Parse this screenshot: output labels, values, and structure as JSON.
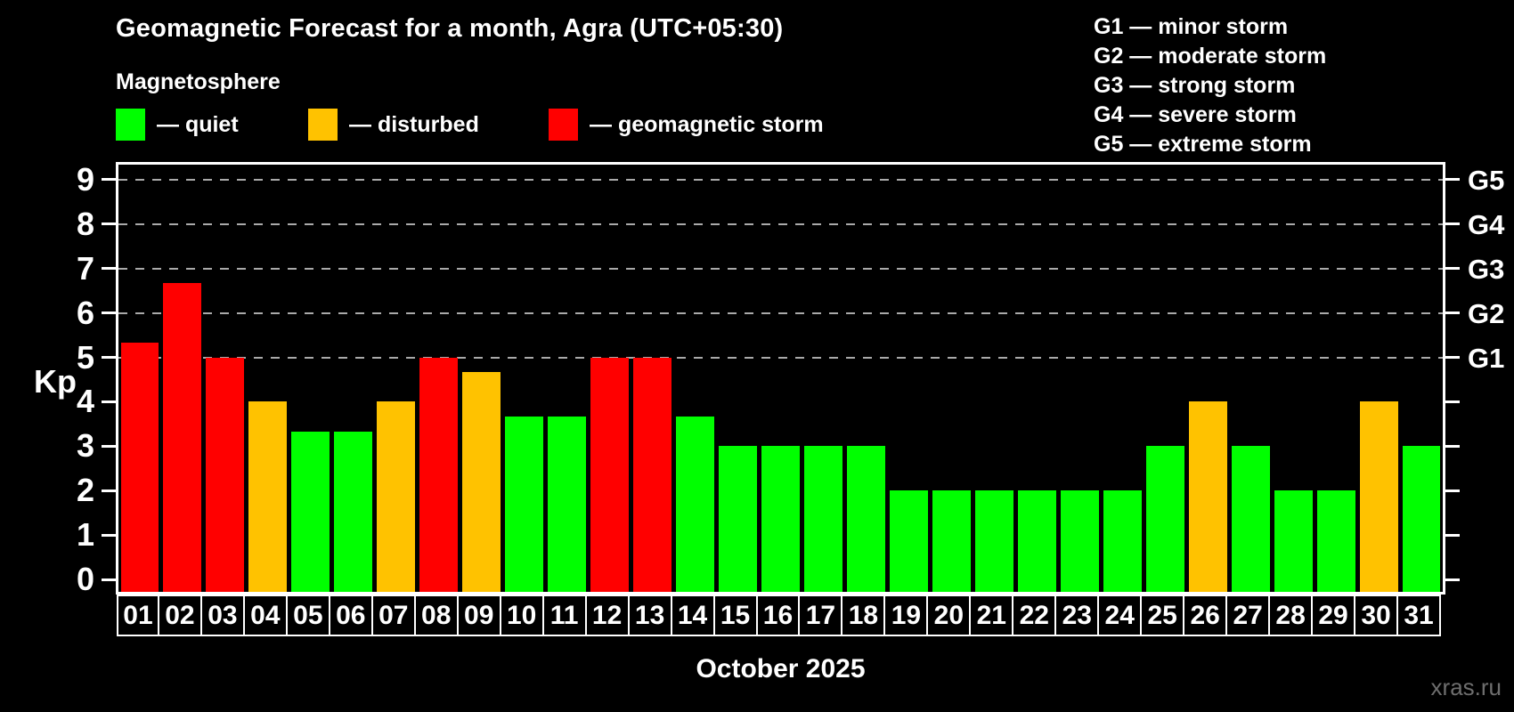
{
  "title": "Geomagnetic Forecast for a month, Agra (UTC+05:30)",
  "subtitle": "Magnetosphere",
  "legend": {
    "items": [
      {
        "label": "— quiet",
        "status": "quiet"
      },
      {
        "label": "— disturbed",
        "status": "disturbed"
      },
      {
        "label": "— geomagnetic storm",
        "status": "storm"
      }
    ]
  },
  "g_legend": {
    "lines": [
      "G1 — minor storm",
      "G2 — moderate storm",
      "G3 — strong storm",
      "G4 — severe storm",
      "G5 — extreme storm"
    ]
  },
  "colors": {
    "quiet": "#00ff00",
    "disturbed": "#ffc200",
    "storm": "#ff0000",
    "background": "#000000",
    "text": "#ffffff",
    "grid": "#aaaaaa",
    "watermark": "#6e6e6e"
  },
  "chart_data": {
    "type": "bar",
    "title": "Geomagnetic Forecast for a month, Agra (UTC+05:30)",
    "xlabel": "October 2025",
    "ylabel": "Kp",
    "ylim": [
      0,
      9
    ],
    "categories": [
      "01",
      "02",
      "03",
      "04",
      "05",
      "06",
      "07",
      "08",
      "09",
      "10",
      "11",
      "12",
      "13",
      "14",
      "15",
      "16",
      "17",
      "18",
      "19",
      "20",
      "21",
      "22",
      "23",
      "24",
      "25",
      "26",
      "27",
      "28",
      "29",
      "30",
      "31"
    ],
    "values": [
      5.33,
      6.67,
      5,
      4,
      3.33,
      3.33,
      4,
      5,
      4.67,
      3.67,
      3.67,
      5,
      5,
      3.67,
      3,
      3,
      3,
      3,
      2,
      2,
      2,
      2,
      2,
      2,
      3,
      4,
      3,
      2,
      2,
      4,
      3
    ],
    "statuses": [
      "storm",
      "storm",
      "storm",
      "disturbed",
      "quiet",
      "quiet",
      "disturbed",
      "storm",
      "disturbed",
      "quiet",
      "quiet",
      "storm",
      "storm",
      "quiet",
      "quiet",
      "quiet",
      "quiet",
      "quiet",
      "quiet",
      "quiet",
      "quiet",
      "quiet",
      "quiet",
      "quiet",
      "quiet",
      "disturbed",
      "quiet",
      "quiet",
      "quiet",
      "disturbed",
      "quiet"
    ],
    "yticks": [
      0,
      1,
      2,
      3,
      4,
      5,
      6,
      7,
      8,
      9
    ],
    "right_axis_labels": [
      {
        "kp": 5,
        "label": "G1"
      },
      {
        "kp": 6,
        "label": "G2"
      },
      {
        "kp": 7,
        "label": "G3"
      },
      {
        "kp": 8,
        "label": "G4"
      },
      {
        "kp": 9,
        "label": "G5"
      }
    ],
    "gridlines_at": [
      5,
      6,
      7,
      8,
      9
    ],
    "grid": "horizontal dashed at storm levels only",
    "legend_position": "top-left"
  },
  "xlabel": "October 2025",
  "watermark": "xras.ru"
}
